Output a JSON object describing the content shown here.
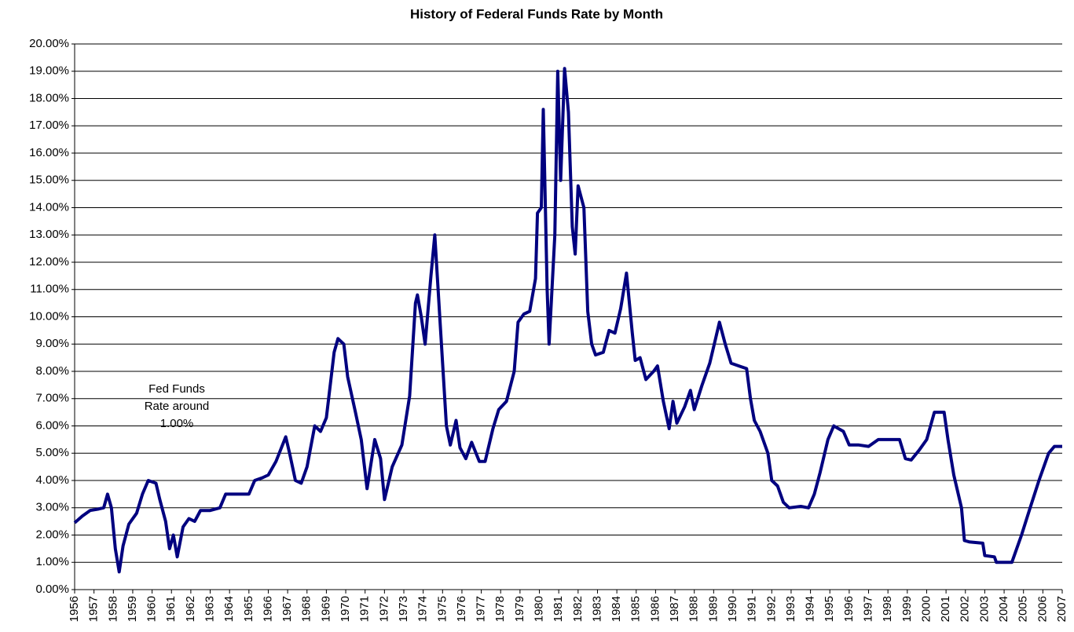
{
  "chart_data": {
    "type": "line",
    "title": "History of Federal Funds Rate by Month",
    "annotation": [
      "Fed Funds",
      "Rate around",
      "1.00%"
    ],
    "color": "#00007f",
    "grid": true,
    "x": [
      1956.0,
      1956.4,
      1956.8,
      1957.2,
      1957.5,
      1957.7,
      1957.9,
      1958.1,
      1958.3,
      1958.5,
      1958.8,
      1959.2,
      1959.5,
      1959.8,
      1960.2,
      1960.4,
      1960.7,
      1960.9,
      1961.1,
      1961.3,
      1961.6,
      1961.9,
      1962.2,
      1962.5,
      1963.0,
      1963.5,
      1963.8,
      1964.5,
      1965.0,
      1965.3,
      1965.7,
      1966.0,
      1966.4,
      1966.9,
      1967.1,
      1967.4,
      1967.7,
      1968.0,
      1968.4,
      1968.7,
      1969.0,
      1969.4,
      1969.6,
      1969.9,
      1970.1,
      1970.5,
      1970.8,
      1971.1,
      1971.5,
      1971.8,
      1972.0,
      1972.4,
      1972.9,
      1973.3,
      1973.6,
      1973.7,
      1973.9,
      1974.1,
      1974.4,
      1974.6,
      1974.9,
      1975.2,
      1975.4,
      1975.7,
      1975.9,
      1976.2,
      1976.5,
      1976.9,
      1977.2,
      1977.6,
      1977.9,
      1978.3,
      1978.7,
      1978.9,
      1979.2,
      1979.5,
      1979.8,
      1979.9,
      1980.1,
      1980.2,
      1980.4,
      1980.5,
      1980.8,
      1980.95,
      1981.1,
      1981.3,
      1981.5,
      1981.7,
      1981.85,
      1982.0,
      1982.3,
      1982.5,
      1982.7,
      1982.9,
      1983.3,
      1983.6,
      1983.9,
      1984.2,
      1984.5,
      1984.8,
      1984.95,
      1985.2,
      1985.5,
      1985.9,
      1986.1,
      1986.4,
      1986.7,
      1986.9,
      1987.1,
      1987.5,
      1987.8,
      1988.0,
      1988.4,
      1988.8,
      1989.1,
      1989.3,
      1989.6,
      1989.9,
      1990.3,
      1990.7,
      1990.9,
      1991.1,
      1991.4,
      1991.8,
      1992.0,
      1992.3,
      1992.6,
      1992.9,
      1993.5,
      1993.9,
      1994.2,
      1994.5,
      1994.9,
      1995.2,
      1995.7,
      1996.0,
      1996.5,
      1997.0,
      1997.5,
      1998.0,
      1998.6,
      1998.9,
      1999.2,
      1999.6,
      2000.0,
      2000.4,
      2000.9,
      2001.1,
      2001.4,
      2001.8,
      2001.95,
      2002.2,
      2002.9,
      2003.0,
      2003.5,
      2003.6,
      2004.4,
      2004.9,
      2005.3,
      2005.8,
      2006.3,
      2006.6,
      2007.0
    ],
    "values": [
      2.45,
      2.7,
      2.9,
      2.95,
      3.0,
      3.5,
      3.0,
      1.5,
      0.65,
      1.6,
      2.4,
      2.8,
      3.5,
      4.0,
      3.9,
      3.3,
      2.5,
      1.5,
      2.0,
      1.2,
      2.3,
      2.6,
      2.5,
      2.9,
      2.9,
      3.0,
      3.5,
      3.5,
      3.5,
      4.0,
      4.1,
      4.2,
      4.7,
      5.6,
      5.0,
      4.0,
      3.9,
      4.5,
      6.0,
      5.8,
      6.3,
      8.7,
      9.2,
      9.0,
      7.8,
      6.5,
      5.5,
      3.7,
      5.5,
      4.8,
      3.3,
      4.5,
      5.3,
      7.1,
      10.5,
      10.8,
      10.0,
      9.0,
      11.5,
      13.0,
      9.5,
      6.0,
      5.3,
      6.2,
      5.2,
      4.8,
      5.4,
      4.7,
      4.7,
      5.9,
      6.6,
      6.9,
      8.0,
      9.8,
      10.1,
      10.2,
      11.4,
      13.8,
      14.0,
      17.6,
      11.0,
      9.0,
      13.0,
      19.0,
      15.0,
      19.1,
      17.5,
      13.3,
      12.3,
      14.8,
      14.0,
      10.2,
      9.0,
      8.6,
      8.7,
      9.5,
      9.4,
      10.3,
      11.6,
      9.4,
      8.4,
      8.5,
      7.7,
      8.0,
      8.2,
      6.9,
      5.9,
      6.9,
      6.1,
      6.7,
      7.3,
      6.6,
      7.5,
      8.3,
      9.2,
      9.8,
      9.0,
      8.3,
      8.2,
      8.1,
      7.0,
      6.2,
      5.8,
      5.0,
      4.0,
      3.8,
      3.2,
      3.0,
      3.05,
      3.0,
      3.5,
      4.3,
      5.5,
      6.0,
      5.8,
      5.3,
      5.3,
      5.25,
      5.5,
      5.5,
      5.5,
      4.8,
      4.75,
      5.1,
      5.5,
      6.5,
      6.5,
      5.5,
      4.2,
      3.0,
      1.8,
      1.75,
      1.7,
      1.25,
      1.2,
      1.0,
      1.0,
      2.0,
      2.9,
      4.0,
      5.0,
      5.25,
      5.25
    ],
    "xlim": [
      1956,
      2007
    ],
    "xticks": [
      1956,
      1957,
      1958,
      1959,
      1960,
      1961,
      1962,
      1963,
      1964,
      1965,
      1966,
      1967,
      1968,
      1969,
      1970,
      1971,
      1972,
      1973,
      1974,
      1975,
      1976,
      1977,
      1978,
      1979,
      1980,
      1981,
      1982,
      1983,
      1984,
      1985,
      1986,
      1987,
      1988,
      1989,
      1990,
      1991,
      1992,
      1993,
      1994,
      1995,
      1996,
      1997,
      1998,
      1999,
      2000,
      2001,
      2002,
      2003,
      2004,
      2005,
      2006,
      2007
    ],
    "ylim": [
      0,
      20
    ],
    "yticks": [
      {
        "value": 0,
        "label": "0.00%"
      },
      {
        "value": 1,
        "label": "1.00%"
      },
      {
        "value": 2,
        "label": "2.00%"
      },
      {
        "value": 3,
        "label": "3.00%"
      },
      {
        "value": 4,
        "label": "4.00%"
      },
      {
        "value": 5,
        "label": "5.00%"
      },
      {
        "value": 6,
        "label": "6.00%"
      },
      {
        "value": 7,
        "label": "7.00%"
      },
      {
        "value": 8,
        "label": "8.00%"
      },
      {
        "value": 9,
        "label": "9.00%"
      },
      {
        "value": 10,
        "label": "10.00%"
      },
      {
        "value": 11,
        "label": "11.00%"
      },
      {
        "value": 12,
        "label": "12.00%"
      },
      {
        "value": 13,
        "label": "13.00%"
      },
      {
        "value": 14,
        "label": "14.00%"
      },
      {
        "value": 15,
        "label": "15.00%"
      },
      {
        "value": 16,
        "label": "16.00%"
      },
      {
        "value": 17,
        "label": "17.00%"
      },
      {
        "value": 18,
        "label": "18.00%"
      },
      {
        "value": 19,
        "label": "19.00%"
      },
      {
        "value": 20,
        "label": "20.00%"
      }
    ]
  }
}
